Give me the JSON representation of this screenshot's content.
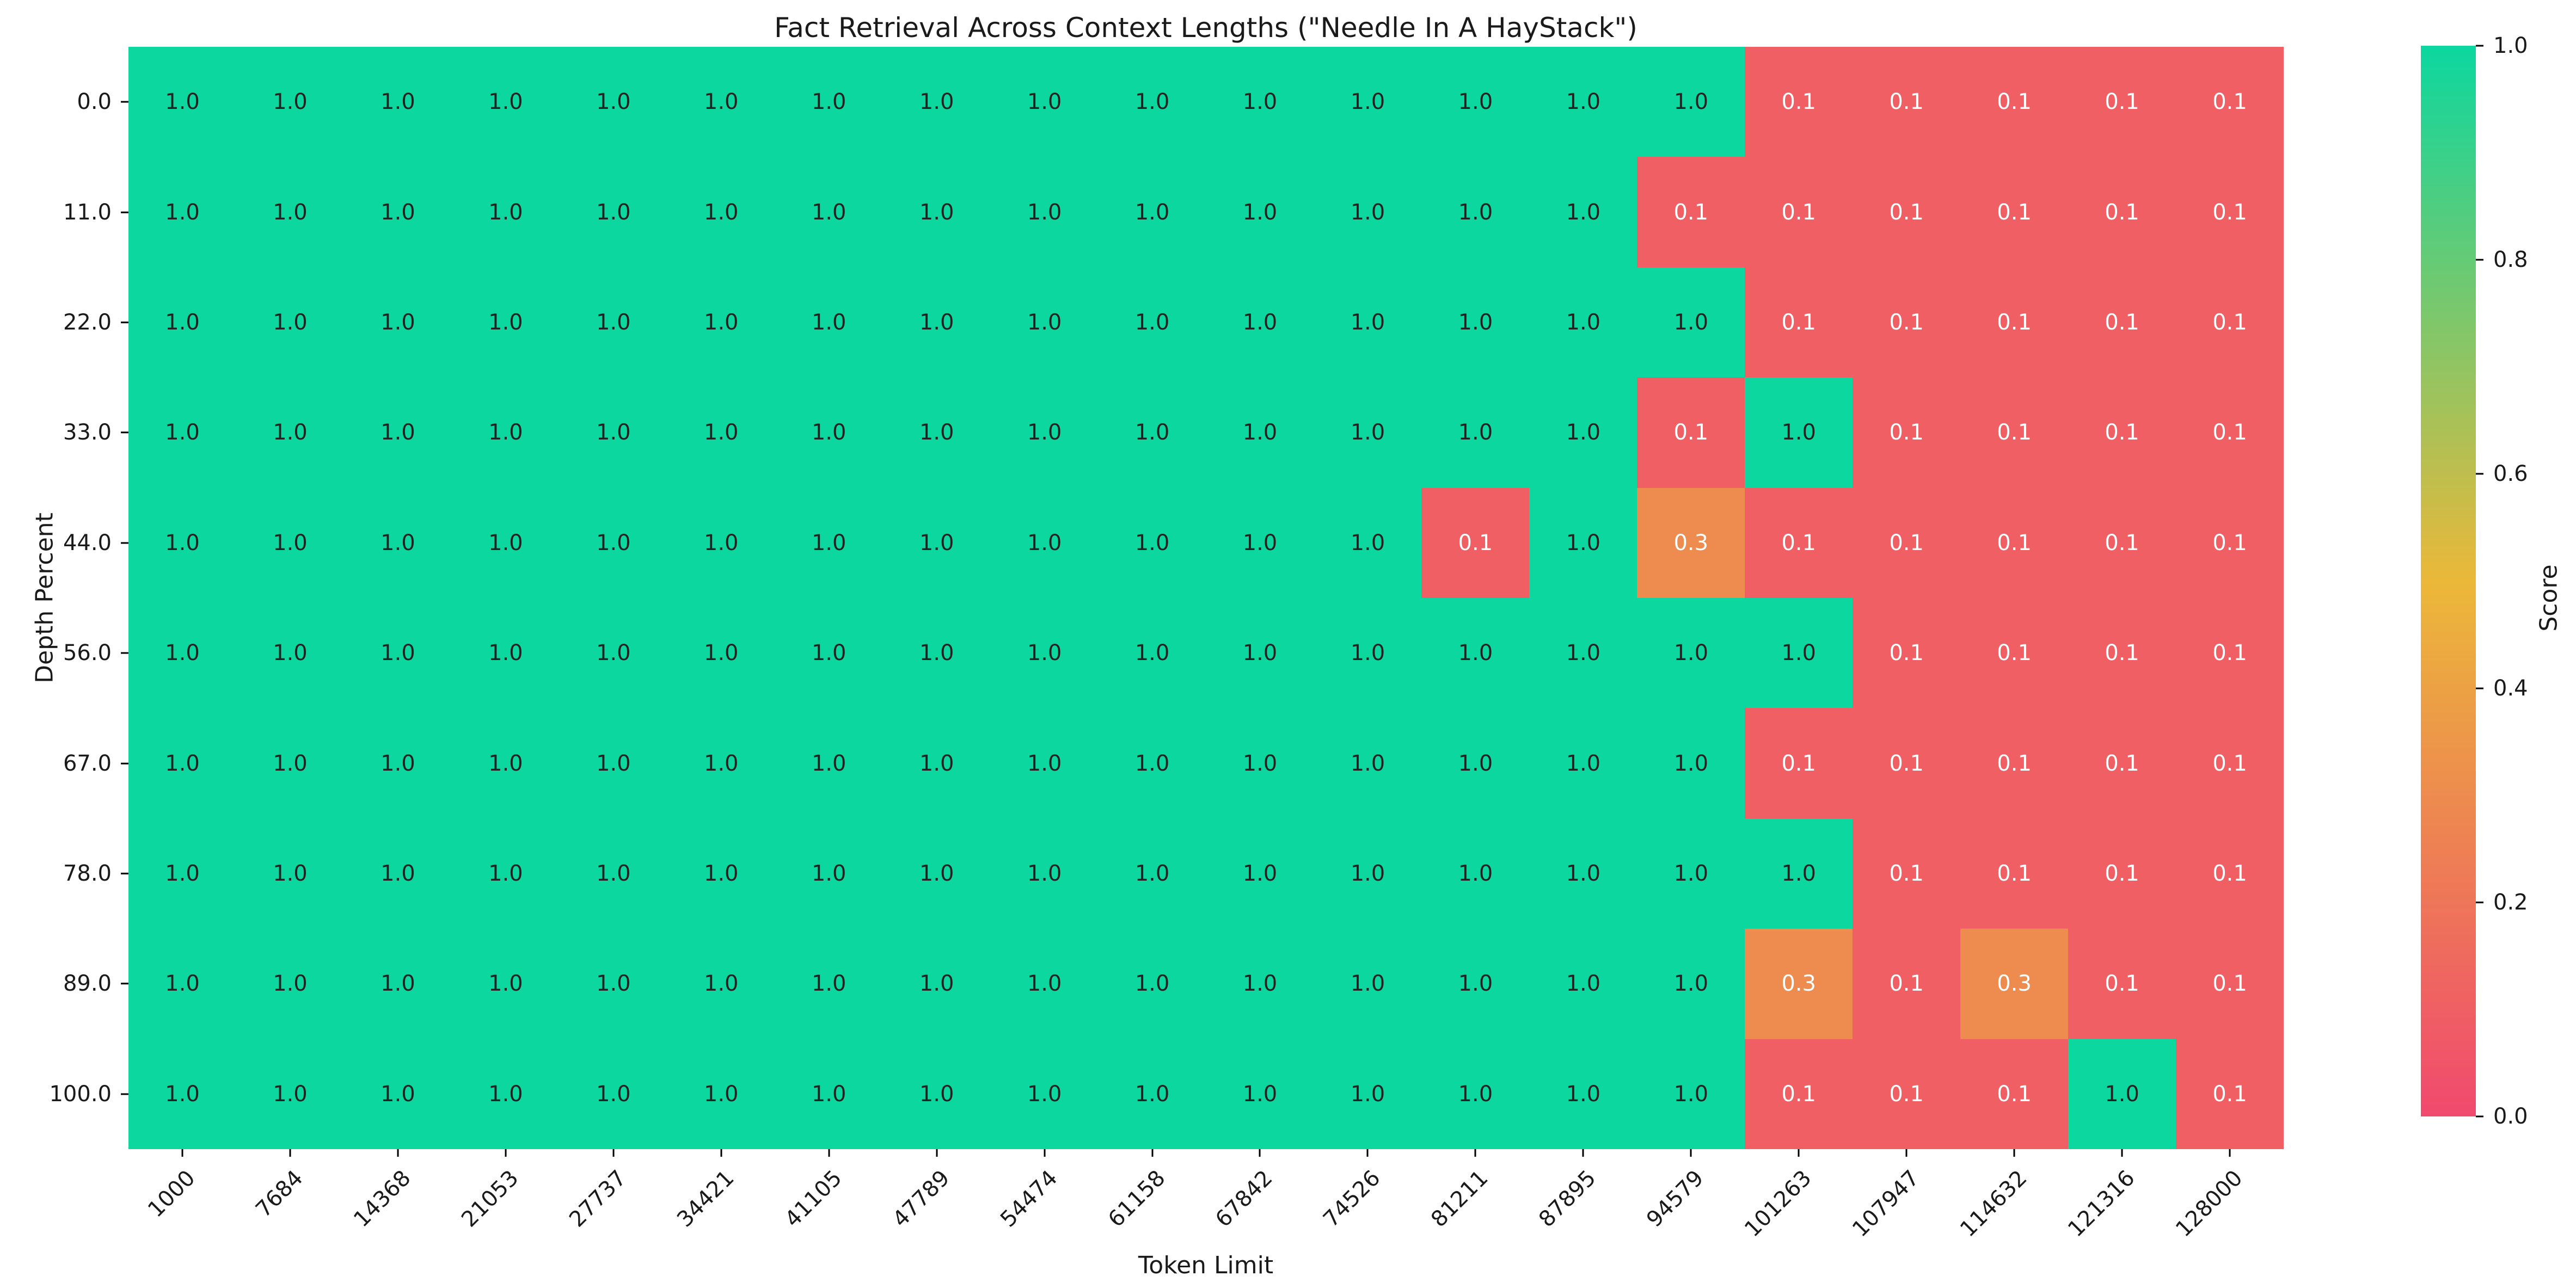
{
  "chart_data": {
    "type": "heatmap",
    "title": "Fact Retrieval Across Context Lengths (\"Needle In A HayStack\")",
    "xlabel": "Token Limit",
    "ylabel": "Depth Percent",
    "x_categories": [
      "1000",
      "7684",
      "14368",
      "21053",
      "27737",
      "34421",
      "41105",
      "47789",
      "54474",
      "61158",
      "67842",
      "74526",
      "81211",
      "87895",
      "94579",
      "101263",
      "107947",
      "114632",
      "121316",
      "128000"
    ],
    "y_categories": [
      "0.0",
      "11.0",
      "22.0",
      "33.0",
      "44.0",
      "56.0",
      "67.0",
      "78.0",
      "89.0",
      "100.0"
    ],
    "values": [
      [
        1.0,
        1.0,
        1.0,
        1.0,
        1.0,
        1.0,
        1.0,
        1.0,
        1.0,
        1.0,
        1.0,
        1.0,
        1.0,
        1.0,
        1.0,
        0.1,
        0.1,
        0.1,
        0.1,
        0.1
      ],
      [
        1.0,
        1.0,
        1.0,
        1.0,
        1.0,
        1.0,
        1.0,
        1.0,
        1.0,
        1.0,
        1.0,
        1.0,
        1.0,
        1.0,
        0.1,
        0.1,
        0.1,
        0.1,
        0.1,
        0.1
      ],
      [
        1.0,
        1.0,
        1.0,
        1.0,
        1.0,
        1.0,
        1.0,
        1.0,
        1.0,
        1.0,
        1.0,
        1.0,
        1.0,
        1.0,
        1.0,
        0.1,
        0.1,
        0.1,
        0.1,
        0.1
      ],
      [
        1.0,
        1.0,
        1.0,
        1.0,
        1.0,
        1.0,
        1.0,
        1.0,
        1.0,
        1.0,
        1.0,
        1.0,
        1.0,
        1.0,
        0.1,
        1.0,
        0.1,
        0.1,
        0.1,
        0.1
      ],
      [
        1.0,
        1.0,
        1.0,
        1.0,
        1.0,
        1.0,
        1.0,
        1.0,
        1.0,
        1.0,
        1.0,
        1.0,
        0.1,
        1.0,
        0.3,
        0.1,
        0.1,
        0.1,
        0.1,
        0.1
      ],
      [
        1.0,
        1.0,
        1.0,
        1.0,
        1.0,
        1.0,
        1.0,
        1.0,
        1.0,
        1.0,
        1.0,
        1.0,
        1.0,
        1.0,
        1.0,
        1.0,
        0.1,
        0.1,
        0.1,
        0.1
      ],
      [
        1.0,
        1.0,
        1.0,
        1.0,
        1.0,
        1.0,
        1.0,
        1.0,
        1.0,
        1.0,
        1.0,
        1.0,
        1.0,
        1.0,
        1.0,
        0.1,
        0.1,
        0.1,
        0.1,
        0.1
      ],
      [
        1.0,
        1.0,
        1.0,
        1.0,
        1.0,
        1.0,
        1.0,
        1.0,
        1.0,
        1.0,
        1.0,
        1.0,
        1.0,
        1.0,
        1.0,
        1.0,
        0.1,
        0.1,
        0.1,
        0.1
      ],
      [
        1.0,
        1.0,
        1.0,
        1.0,
        1.0,
        1.0,
        1.0,
        1.0,
        1.0,
        1.0,
        1.0,
        1.0,
        1.0,
        1.0,
        1.0,
        0.3,
        0.1,
        0.3,
        0.1,
        0.1
      ],
      [
        1.0,
        1.0,
        1.0,
        1.0,
        1.0,
        1.0,
        1.0,
        1.0,
        1.0,
        1.0,
        1.0,
        1.0,
        1.0,
        1.0,
        1.0,
        0.1,
        0.1,
        0.1,
        1.0,
        0.1
      ]
    ],
    "colorbar": {
      "label": "Score",
      "ticks": [
        "1.0",
        "0.8",
        "0.6",
        "0.4",
        "0.2",
        "0.0"
      ]
    },
    "colors": {
      "cmap_low": "#F0496E",
      "cmap_mid": "#EBB839",
      "cmap_high": "#0CD79F",
      "annot_dark": "#222222",
      "annot_light": "#ffffff",
      "tick_color": "#000000"
    },
    "value_range": [
      0.0,
      1.0
    ],
    "grid": false,
    "legend_position": "right-colorbar"
  }
}
